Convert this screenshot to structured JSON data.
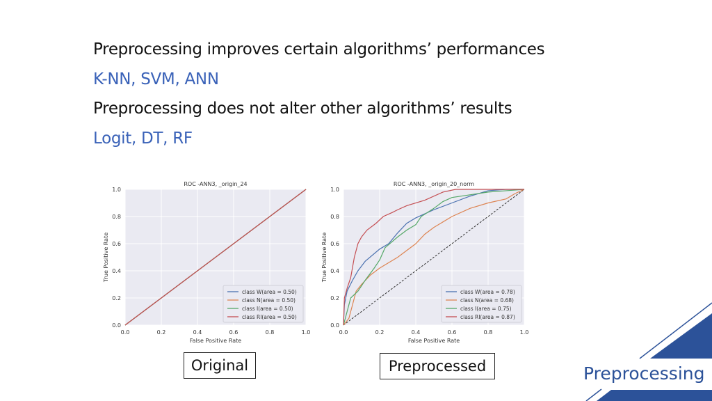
{
  "slide": {
    "lines": [
      "Preprocessing improves certain algorithms’ performances",
      "K-NN, SVM, ANN",
      "Preprocessing does not alter other algorithms’ results",
      "Logit, DT, RF"
    ],
    "captions": [
      "Original",
      "Preprocessed"
    ],
    "brand": "Preprocessing",
    "accent": "#2c5299"
  },
  "chart_data": [
    {
      "type": "line",
      "title": "ROC -ANN3, _origin_24",
      "xlabel": "False Positive Rate",
      "ylabel": "True Positive Rate",
      "xlim": [
        0,
        1
      ],
      "ylim": [
        0,
        1
      ],
      "grid": true,
      "legend": "bottom-right",
      "ticks": [
        "0.0",
        "0.2",
        "0.4",
        "0.6",
        "0.8",
        "1.0"
      ],
      "series": [
        {
          "name": "class W(area = 0.50)",
          "color": "#4c72b0",
          "points": [
            [
              0,
              0
            ],
            [
              1,
              1
            ]
          ]
        },
        {
          "name": "class N(area = 0.50)",
          "color": "#dd8452",
          "points": [
            [
              0,
              0
            ],
            [
              1,
              1
            ]
          ]
        },
        {
          "name": "class I(area = 0.50)",
          "color": "#55a868",
          "points": [
            [
              0,
              0
            ],
            [
              1,
              1
            ]
          ]
        },
        {
          "name": "class RI(area = 0.50)",
          "color": "#c44e52",
          "points": [
            [
              0,
              0
            ],
            [
              1,
              1
            ]
          ]
        }
      ]
    },
    {
      "type": "line",
      "title": "ROC -ANN3, _origin_20_norm",
      "xlabel": "False Positive Rate",
      "ylabel": "True Positive Rate",
      "xlim": [
        0,
        1
      ],
      "ylim": [
        0,
        1
      ],
      "grid": true,
      "legend": "bottom-right",
      "diagonal": true,
      "ticks": [
        "0.0",
        "0.2",
        "0.4",
        "0.6",
        "0.8",
        "1.0"
      ],
      "series": [
        {
          "name": "class W(area = 0.78)",
          "color": "#4c72b0",
          "points": [
            [
              0,
              0
            ],
            [
              0.005,
              0.15
            ],
            [
              0.02,
              0.25
            ],
            [
              0.05,
              0.33
            ],
            [
              0.08,
              0.4
            ],
            [
              0.12,
              0.47
            ],
            [
              0.2,
              0.56
            ],
            [
              0.25,
              0.6
            ],
            [
              0.3,
              0.68
            ],
            [
              0.35,
              0.75
            ],
            [
              0.4,
              0.79
            ],
            [
              0.45,
              0.82
            ],
            [
              0.5,
              0.85
            ],
            [
              0.6,
              0.9
            ],
            [
              0.7,
              0.95
            ],
            [
              0.8,
              0.99
            ],
            [
              0.9,
              1
            ],
            [
              1,
              1
            ]
          ]
        },
        {
          "name": "class N(area = 0.68)",
          "color": "#dd8452",
          "points": [
            [
              0,
              0
            ],
            [
              0.03,
              0.05
            ],
            [
              0.05,
              0.15
            ],
            [
              0.07,
              0.25
            ],
            [
              0.1,
              0.3
            ],
            [
              0.15,
              0.37
            ],
            [
              0.2,
              0.42
            ],
            [
              0.3,
              0.5
            ],
            [
              0.4,
              0.6
            ],
            [
              0.45,
              0.67
            ],
            [
              0.5,
              0.72
            ],
            [
              0.55,
              0.76
            ],
            [
              0.6,
              0.8
            ],
            [
              0.7,
              0.86
            ],
            [
              0.8,
              0.9
            ],
            [
              0.9,
              0.93
            ],
            [
              0.95,
              0.97
            ],
            [
              1,
              1
            ]
          ]
        },
        {
          "name": "class I(area = 0.75)",
          "color": "#55a868",
          "points": [
            [
              0,
              0
            ],
            [
              0.02,
              0.1
            ],
            [
              0.04,
              0.2
            ],
            [
              0.08,
              0.25
            ],
            [
              0.12,
              0.33
            ],
            [
              0.17,
              0.42
            ],
            [
              0.2,
              0.48
            ],
            [
              0.23,
              0.57
            ],
            [
              0.3,
              0.65
            ],
            [
              0.35,
              0.7
            ],
            [
              0.4,
              0.74
            ],
            [
              0.43,
              0.8
            ],
            [
              0.5,
              0.86
            ],
            [
              0.55,
              0.91
            ],
            [
              0.6,
              0.94
            ],
            [
              0.7,
              0.96
            ],
            [
              0.8,
              0.98
            ],
            [
              0.9,
              0.99
            ],
            [
              1,
              1
            ]
          ]
        },
        {
          "name": "class RI(area = 0.87)",
          "color": "#c44e52",
          "points": [
            [
              0,
              0
            ],
            [
              0.005,
              0.2
            ],
            [
              0.02,
              0.27
            ],
            [
              0.04,
              0.35
            ],
            [
              0.06,
              0.5
            ],
            [
              0.08,
              0.6
            ],
            [
              0.1,
              0.65
            ],
            [
              0.13,
              0.7
            ],
            [
              0.18,
              0.75
            ],
            [
              0.22,
              0.8
            ],
            [
              0.27,
              0.83
            ],
            [
              0.3,
              0.85
            ],
            [
              0.35,
              0.88
            ],
            [
              0.45,
              0.92
            ],
            [
              0.55,
              0.98
            ],
            [
              0.62,
              1
            ],
            [
              1,
              1
            ]
          ]
        }
      ]
    }
  ]
}
